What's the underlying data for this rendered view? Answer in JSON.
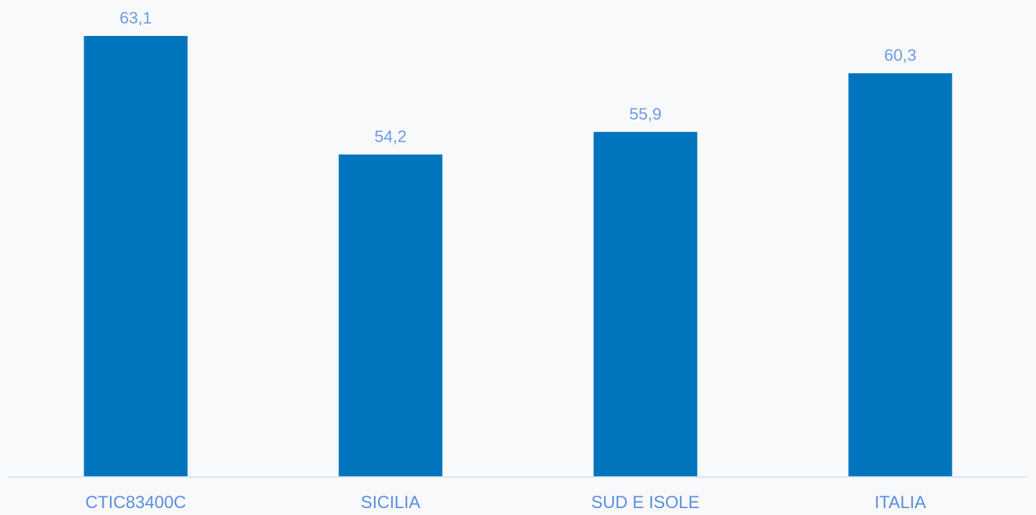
{
  "chart_data": {
    "type": "bar",
    "categories": [
      "CTIC83400C",
      "SICILIA",
      "SUD E ISOLE",
      "ITALIA"
    ],
    "series": [
      {
        "values": [
          63.1,
          54.2,
          55.9,
          60.3
        ],
        "labels": [
          "63,1",
          "54,2",
          "55,9",
          "60,3"
        ],
        "color": "#0075bd"
      }
    ],
    "title": "",
    "xlabel": "",
    "ylabel": "",
    "ylim": [
      30,
      65
    ],
    "grid": false,
    "legend": "none",
    "axis_color": "#d6e4f0",
    "label_color": "#6e9be6"
  }
}
